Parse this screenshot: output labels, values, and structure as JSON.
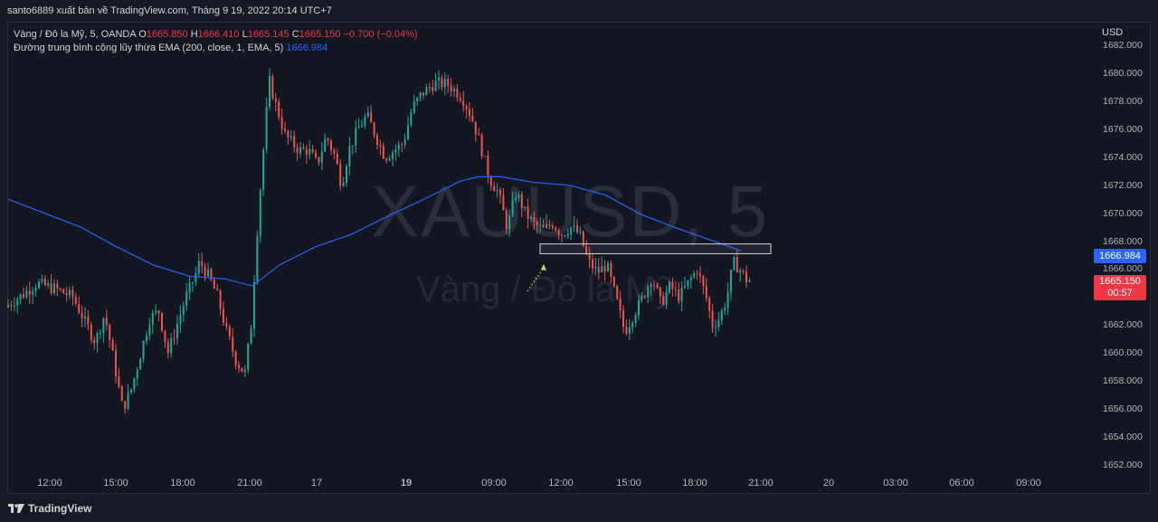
{
  "header": {
    "published_by": "santo6889 xuất bản về TradingView.com, Tháng 9 19, 2022 20:14 UTC+7"
  },
  "legend": {
    "symbol_line": "Vàng / Đô la Mỹ, 5, OANDA",
    "open_label": "O",
    "open_value": "1665.850",
    "high_label": "H",
    "high_value": "1666.410",
    "low_label": "L",
    "low_value": "1665.145",
    "close_label": "C",
    "close_value": "1665.150",
    "change": "−0.700 (−0.04%)",
    "ema_label": "Đường trung bình cộng lũy thừa EMA (200, close, 1, EMA, 5)",
    "ema_value": "1666.984"
  },
  "watermark": {
    "symbol": "XAUUSD, 5",
    "description": "Vàng / Đô la Mỹ"
  },
  "price_axis": {
    "currency": "USD",
    "ticks": [
      "1682.000",
      "1680.000",
      "1678.000",
      "1676.000",
      "1674.000",
      "1672.000",
      "1670.000",
      "1668.000",
      "1666.000",
      "1664.000",
      "1662.000",
      "1660.000",
      "1658.000",
      "1656.000",
      "1654.000",
      "1652.000"
    ],
    "ema_tag": "1666.984",
    "price_tag": "1665.150",
    "countdown": "00:57"
  },
  "time_axis": {
    "ticks": [
      "12:00",
      "15:00",
      "18:00",
      "21:00",
      "17",
      "19",
      "09:00",
      "12:00",
      "15:00",
      "18:00",
      "21:00",
      "20",
      "03:00",
      "06:00",
      "09:00"
    ]
  },
  "colors": {
    "background": "#131722",
    "up": "#26a69a",
    "down": "#ef5350",
    "ema": "#2962ff",
    "price_tag": "#f23645"
  },
  "chart_data": {
    "type": "candlestick",
    "symbol": "XAUUSD",
    "interval": "5",
    "ylim": [
      1652,
      1682
    ],
    "ema_period": 200,
    "last_close": 1665.15,
    "ema_last": 1666.984,
    "x_ticks": [
      "12:00",
      "15:00",
      "18:00",
      "21:00",
      "17",
      "19",
      "09:00",
      "12:00",
      "15:00",
      "18:00",
      "21:00",
      "20",
      "03:00",
      "06:00",
      "09:00"
    ],
    "ema": [
      [
        0,
        1671.0
      ],
      [
        40,
        1670.0
      ],
      [
        80,
        1669.0
      ],
      [
        120,
        1667.6
      ],
      [
        160,
        1666.3
      ],
      [
        200,
        1665.5
      ],
      [
        240,
        1665.3
      ],
      [
        270,
        1664.8
      ],
      [
        300,
        1666.3
      ],
      [
        340,
        1667.6
      ],
      [
        380,
        1668.5
      ],
      [
        420,
        1669.8
      ],
      [
        460,
        1671.0
      ],
      [
        500,
        1672.3
      ],
      [
        520,
        1672.6
      ],
      [
        545,
        1672.6
      ],
      [
        580,
        1672.2
      ],
      [
        620,
        1672.0
      ],
      [
        660,
        1671.3
      ],
      [
        700,
        1669.9
      ],
      [
        740,
        1668.9
      ],
      [
        780,
        1668.0
      ],
      [
        810,
        1667.3
      ]
    ],
    "price_path": [
      [
        0,
        1663.3
      ],
      [
        20,
        1664.2
      ],
      [
        35,
        1665.0
      ],
      [
        55,
        1664.6
      ],
      [
        75,
        1664.0
      ],
      [
        90,
        1662.0
      ],
      [
        100,
        1660.8
      ],
      [
        110,
        1662.8
      ],
      [
        120,
        1659.5
      ],
      [
        130,
        1656.0
      ],
      [
        140,
        1657.5
      ],
      [
        150,
        1660.0
      ],
      [
        160,
        1662.5
      ],
      [
        170,
        1663.0
      ],
      [
        180,
        1660.0
      ],
      [
        190,
        1662.0
      ],
      [
        200,
        1664.0
      ],
      [
        210,
        1665.5
      ],
      [
        215,
        1666.5
      ],
      [
        225,
        1665.5
      ],
      [
        235,
        1664.0
      ],
      [
        245,
        1661.5
      ],
      [
        255,
        1659.5
      ],
      [
        265,
        1658.5
      ],
      [
        272,
        1662.0
      ],
      [
        280,
        1670.0
      ],
      [
        288,
        1676.5
      ],
      [
        292,
        1679.5
      ],
      [
        298,
        1678.0
      ],
      [
        310,
        1675.5
      ],
      [
        325,
        1674.5
      ],
      [
        335,
        1674.5
      ],
      [
        345,
        1673.5
      ],
      [
        355,
        1675.5
      ],
      [
        365,
        1674.0
      ],
      [
        372,
        1672.0
      ],
      [
        380,
        1674.5
      ],
      [
        390,
        1676.0
      ],
      [
        400,
        1677.0
      ],
      [
        410,
        1675.5
      ],
      [
        420,
        1674.0
      ],
      [
        430,
        1674.5
      ],
      [
        440,
        1675.0
      ],
      [
        450,
        1677.5
      ],
      [
        460,
        1678.5
      ],
      [
        475,
        1679.3
      ],
      [
        490,
        1679.2
      ],
      [
        505,
        1678.3
      ],
      [
        515,
        1677.0
      ],
      [
        525,
        1675.0
      ],
      [
        535,
        1672.5
      ],
      [
        545,
        1671.5
      ],
      [
        555,
        1669.0
      ],
      [
        565,
        1671.5
      ],
      [
        575,
        1670.0
      ],
      [
        585,
        1669.2
      ],
      [
        595,
        1668.8
      ],
      [
        605,
        1669.3
      ],
      [
        615,
        1668.5
      ],
      [
        625,
        1669.0
      ],
      [
        635,
        1668.5
      ],
      [
        645,
        1666.5
      ],
      [
        655,
        1665.8
      ],
      [
        665,
        1666.3
      ],
      [
        675,
        1664.0
      ],
      [
        685,
        1661.5
      ],
      [
        695,
        1662.8
      ],
      [
        705,
        1664.0
      ],
      [
        715,
        1665.5
      ],
      [
        725,
        1663.5
      ],
      [
        735,
        1664.8
      ],
      [
        745,
        1664.0
      ],
      [
        755,
        1665.0
      ],
      [
        765,
        1666.0
      ],
      [
        775,
        1664.0
      ],
      [
        782,
        1662.0
      ],
      [
        790,
        1662.5
      ],
      [
        798,
        1664.0
      ],
      [
        805,
        1666.5
      ],
      [
        812,
        1666.0
      ],
      [
        820,
        1665.2
      ]
    ],
    "zone": {
      "x_start": 597,
      "x_end": 852,
      "y_top": 1667.8,
      "y_bottom": 1667.1
    }
  }
}
